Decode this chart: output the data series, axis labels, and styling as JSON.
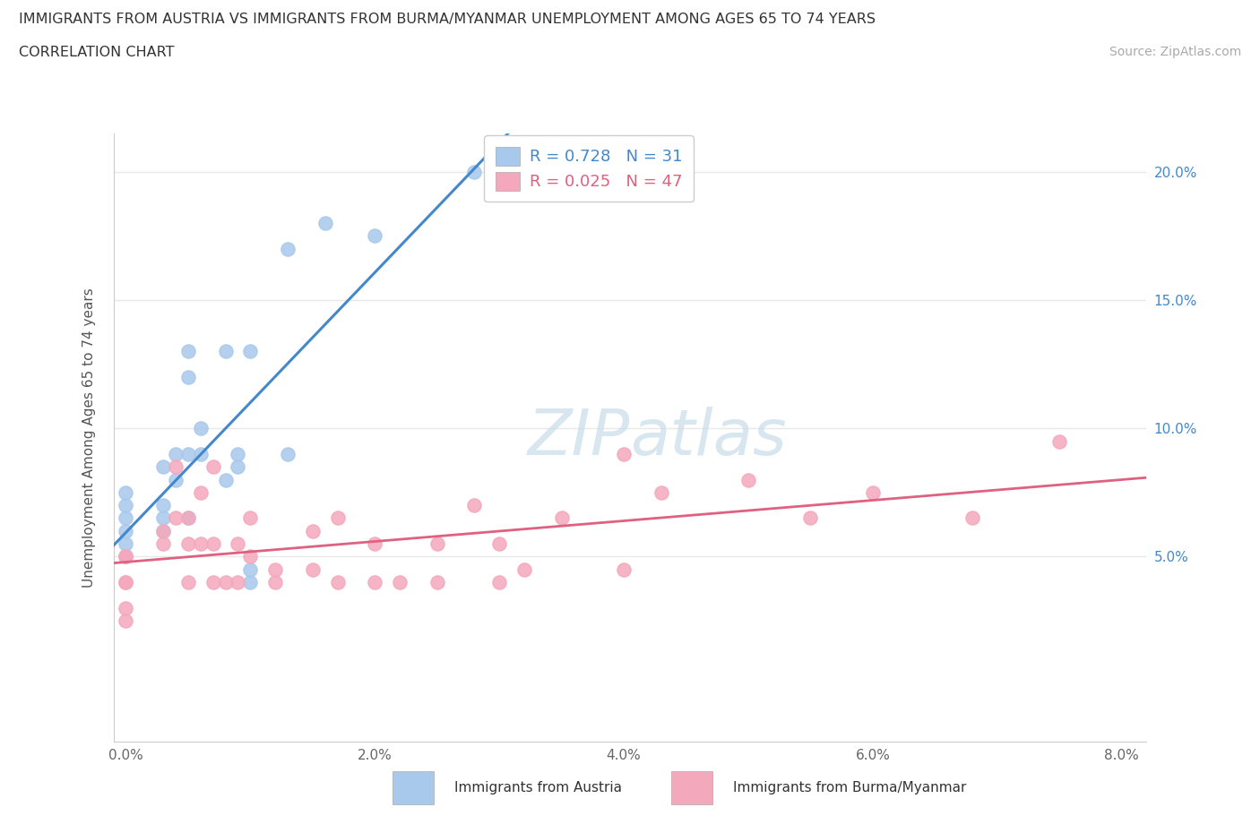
{
  "title_line1": "IMMIGRANTS FROM AUSTRIA VS IMMIGRANTS FROM BURMA/MYANMAR UNEMPLOYMENT AMONG AGES 65 TO 74 YEARS",
  "title_line2": "CORRELATION CHART",
  "source_text": "Source: ZipAtlas.com",
  "ylabel": "Unemployment Among Ages 65 to 74 years",
  "xlim": [
    -0.001,
    0.082
  ],
  "ylim": [
    -0.022,
    0.215
  ],
  "xtick_vals": [
    0.0,
    0.02,
    0.04,
    0.06,
    0.08
  ],
  "xtick_labels": [
    "0.0%",
    "2.0%",
    "4.0%",
    "6.0%",
    "8.0%"
  ],
  "ytick_vals": [
    0.05,
    0.1,
    0.15,
    0.2
  ],
  "ytick_labels": [
    "5.0%",
    "10.0%",
    "15.0%",
    "20.0%"
  ],
  "austria_R": 0.728,
  "austria_N": 31,
  "burma_R": 0.025,
  "burma_N": 47,
  "austria_dot_color": "#a8c8ec",
  "burma_dot_color": "#f4a8bc",
  "austria_line_color": "#4488cc",
  "burma_line_color": "#e06080",
  "right_axis_color": "#4488cc",
  "grid_color": "#e8e8e8",
  "watermark_color": "#c8dcea",
  "austria_x": [
    0.0,
    0.0,
    0.0,
    0.0,
    0.0,
    0.0,
    0.0,
    0.003,
    0.003,
    0.003,
    0.003,
    0.004,
    0.004,
    0.005,
    0.005,
    0.005,
    0.005,
    0.006,
    0.006,
    0.008,
    0.008,
    0.009,
    0.009,
    0.01,
    0.01,
    0.01,
    0.013,
    0.013,
    0.016,
    0.02,
    0.028
  ],
  "austria_y": [
    0.05,
    0.05,
    0.055,
    0.06,
    0.065,
    0.07,
    0.075,
    0.06,
    0.065,
    0.07,
    0.085,
    0.08,
    0.09,
    0.065,
    0.09,
    0.12,
    0.13,
    0.09,
    0.1,
    0.08,
    0.13,
    0.085,
    0.09,
    0.045,
    0.04,
    0.13,
    0.09,
    0.17,
    0.18,
    0.175,
    0.2
  ],
  "burma_x": [
    0.0,
    0.0,
    0.0,
    0.0,
    0.0,
    0.0,
    0.003,
    0.003,
    0.004,
    0.004,
    0.005,
    0.005,
    0.005,
    0.006,
    0.006,
    0.007,
    0.007,
    0.007,
    0.008,
    0.009,
    0.009,
    0.01,
    0.01,
    0.012,
    0.012,
    0.015,
    0.015,
    0.017,
    0.017,
    0.02,
    0.02,
    0.022,
    0.025,
    0.025,
    0.028,
    0.03,
    0.03,
    0.032,
    0.035,
    0.04,
    0.04,
    0.043,
    0.05,
    0.055,
    0.06,
    0.068,
    0.075
  ],
  "burma_y": [
    0.05,
    0.05,
    0.04,
    0.04,
    0.03,
    0.025,
    0.06,
    0.055,
    0.085,
    0.065,
    0.055,
    0.065,
    0.04,
    0.055,
    0.075,
    0.04,
    0.055,
    0.085,
    0.04,
    0.04,
    0.055,
    0.05,
    0.065,
    0.045,
    0.04,
    0.045,
    0.06,
    0.04,
    0.065,
    0.04,
    0.055,
    0.04,
    0.055,
    0.04,
    0.07,
    0.04,
    0.055,
    0.045,
    0.065,
    0.045,
    0.09,
    0.075,
    0.08,
    0.065,
    0.075,
    0.065,
    0.095
  ]
}
